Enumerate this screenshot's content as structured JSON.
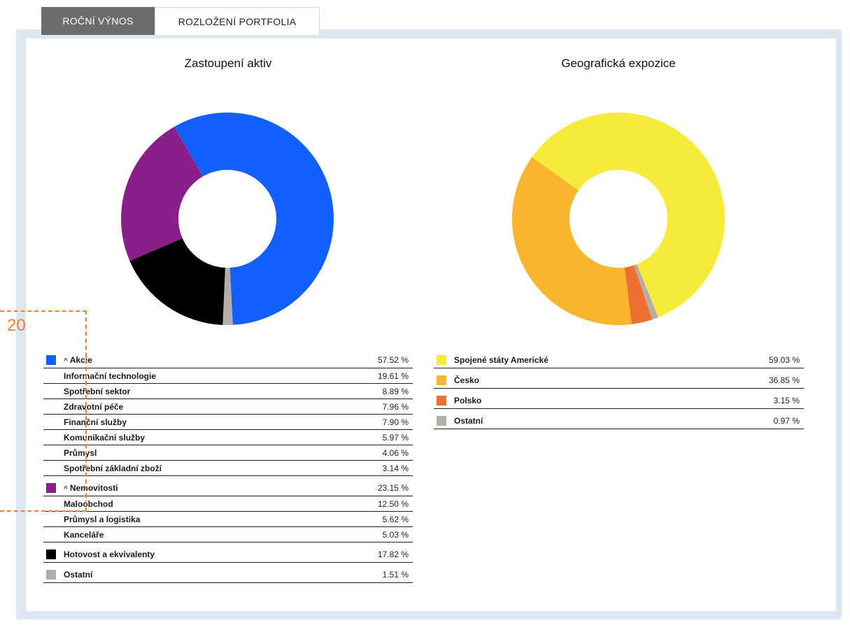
{
  "tabs": [
    {
      "label": "ROČNÍ VÝNOS",
      "active": false
    },
    {
      "label": "ROZLOŽENÍ PORTFOLIA",
      "active": true
    }
  ],
  "annotation": {
    "label": "20",
    "color": "#e8823a"
  },
  "chart_data": [
    {
      "type": "pie",
      "title": "Zastoupení aktiv",
      "donut": true,
      "slices": [
        {
          "label": "Akcie",
          "value": 57.52,
          "color": "#1160ff"
        },
        {
          "label": "Ostatní",
          "value": 1.51,
          "color": "#b3aea8"
        },
        {
          "label": "Hotovost a ekvivalenty",
          "value": 17.82,
          "color": "#000000"
        },
        {
          "label": "Nemovitosti",
          "value": 23.15,
          "color": "#8a1f8c"
        }
      ],
      "start_angle_deg": -120,
      "legend": [
        {
          "label": "Akcie",
          "value": "57.52 %",
          "color": "#1160ff",
          "group": true,
          "expanded": true
        },
        {
          "label": "Informační technologie",
          "value": "19.61 %"
        },
        {
          "label": "Spotřební sektor",
          "value": "8.89 %"
        },
        {
          "label": "Zdravotní péče",
          "value": "7.96 %"
        },
        {
          "label": "Finanční služby",
          "value": "7.90 %"
        },
        {
          "label": "Komunikační služby",
          "value": "5.97 %"
        },
        {
          "label": "Průmysl",
          "value": "4.06 %"
        },
        {
          "label": "Spotřební základní zboží",
          "value": "3.14 %"
        },
        {
          "label": "Nemovitosti",
          "value": "23.15 %",
          "color": "#8a1f8c",
          "group": true,
          "expanded": true
        },
        {
          "label": "Maloobchod",
          "value": "12.50 %"
        },
        {
          "label": "Průmysl a logistika",
          "value": "5.62 %"
        },
        {
          "label": "Kanceláře",
          "value": "5.03 %"
        },
        {
          "label": "Hotovost a ekvivalenty",
          "value": "17.82 %",
          "color": "#000000",
          "group": true
        },
        {
          "label": "Ostatní",
          "value": "1.51 %",
          "color": "#b3aea8",
          "group": true
        }
      ]
    },
    {
      "type": "pie",
      "title": "Geografická expozice",
      "donut": true,
      "slices": [
        {
          "label": "Spojené státy Americké",
          "value": 59.03,
          "color": "#f6ea3a"
        },
        {
          "label": "Ostatní",
          "value": 0.97,
          "color": "#b3aea8"
        },
        {
          "label": "Polsko",
          "value": 3.15,
          "color": "#ee7030"
        },
        {
          "label": "Česko",
          "value": 36.85,
          "color": "#f9b52e"
        }
      ],
      "start_angle_deg": -144.5,
      "legend": [
        {
          "label": "Spojené státy Americké",
          "value": "59.03 %",
          "color": "#f6ea3a",
          "group": true
        },
        {
          "label": "Česko",
          "value": "36.85 %",
          "color": "#f9b52e",
          "group": true
        },
        {
          "label": "Polsko",
          "value": "3.15 %",
          "color": "#ee7030",
          "group": true
        },
        {
          "label": "Ostatní",
          "value": "0.97 %",
          "color": "#b3aea8",
          "group": true
        }
      ]
    }
  ]
}
